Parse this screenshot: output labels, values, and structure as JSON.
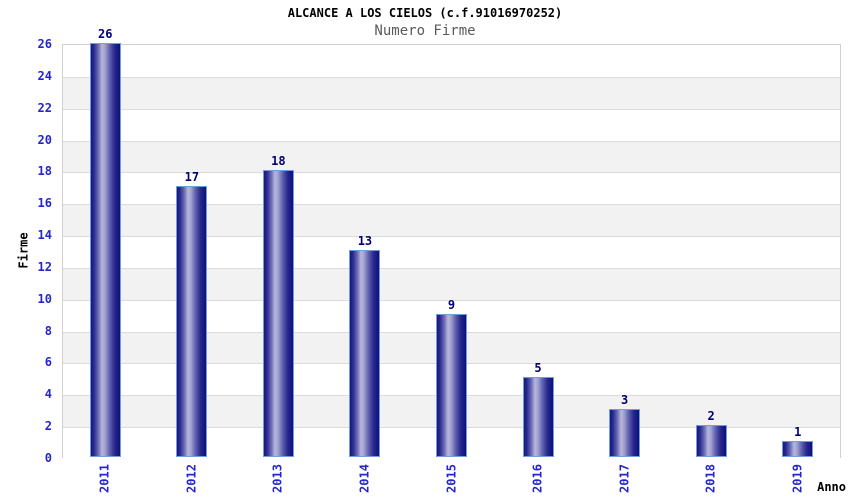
{
  "chart_data": {
    "type": "bar",
    "title": "ALCANCE A LOS CIELOS (c.f.91016970252)",
    "subtitle": "Numero Firme",
    "categories": [
      "2011",
      "2012",
      "2013",
      "2014",
      "2015",
      "2016",
      "2017",
      "2018",
      "2019"
    ],
    "values": [
      26,
      17,
      18,
      13,
      9,
      5,
      3,
      2,
      1
    ],
    "xlabel": "Anno",
    "ylabel": "Firme",
    "ylim": [
      0,
      26
    ],
    "ytick_step": 2,
    "grid": "horizontal-bands-alternating",
    "legend": "none",
    "colors": {
      "bar_edge_dark": "#16167e",
      "bar_center_light": "#b7b7dc",
      "bar_border": "#6f9ddd",
      "tick_label": "#2626cd",
      "value_label": "#000070",
      "band_gray": "#f2f2f2",
      "band_white": "#ffffff",
      "grid_line": "#dcdcdc",
      "plot_border": "#d0d0d0",
      "title_color": "#000000",
      "subtitle_color": "#5a5a5a",
      "axis_text": "#000000"
    }
  }
}
